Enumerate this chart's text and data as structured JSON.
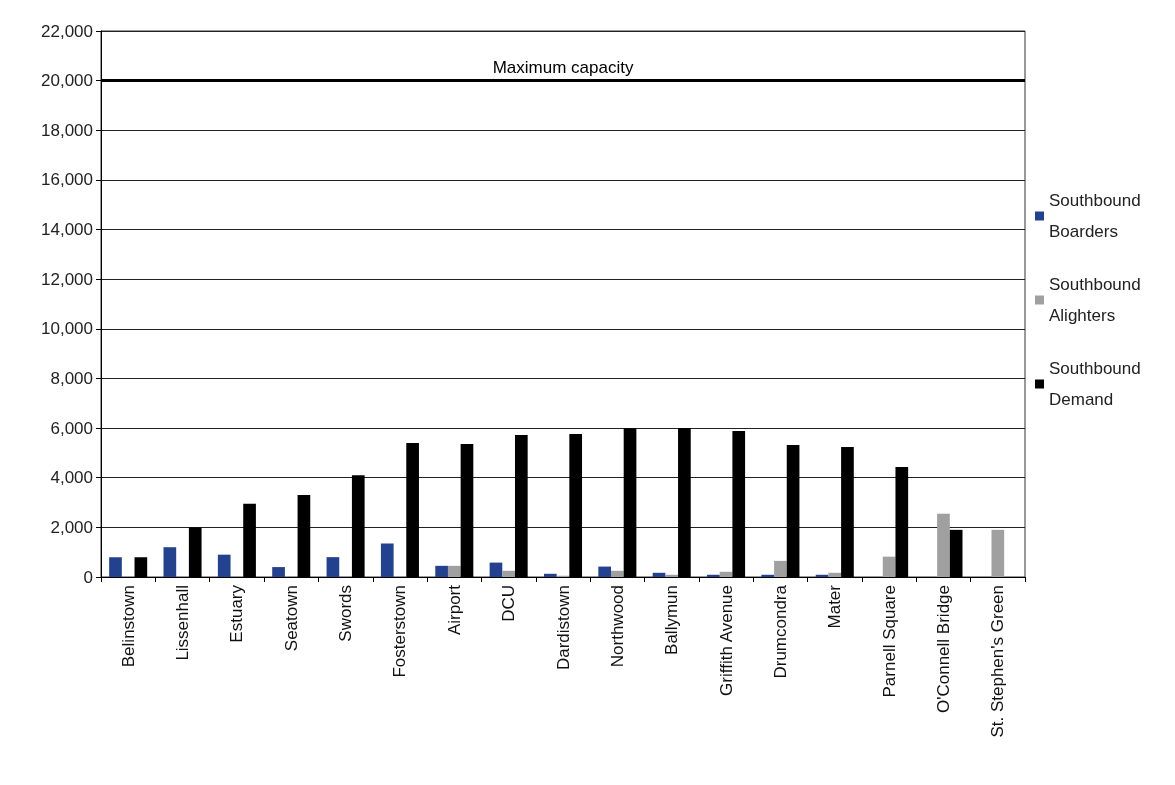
{
  "chart_data": {
    "type": "bar",
    "categories": [
      "Belinstown",
      "Lissenhall",
      "Estuary",
      "Seatown",
      "Swords",
      "Fosterstown",
      "Airport",
      "DCU",
      "Dardistown",
      "Northwood",
      "Ballymun",
      "Griffith Avenue",
      "Drumcondra",
      "Mater",
      "Parnell Square",
      "O'Connell Bridge",
      "St. Stephen's Green"
    ],
    "series": [
      {
        "name": "Southbound Boarders",
        "color": "#22418f",
        "values": [
          800,
          1200,
          900,
          400,
          800,
          1350,
          450,
          580,
          130,
          420,
          170,
          90,
          90,
          90,
          0,
          0,
          0
        ]
      },
      {
        "name": "Southbound Alighters",
        "color": "#a0a0a0",
        "values": [
          0,
          0,
          0,
          0,
          0,
          0,
          450,
          250,
          50,
          250,
          90,
          210,
          650,
          170,
          820,
          2550,
          1900
        ]
      },
      {
        "name": "Southbound Demand",
        "color": "#000000",
        "values": [
          800,
          2000,
          2950,
          3300,
          4100,
          5400,
          5360,
          5720,
          5760,
          5990,
          6000,
          5880,
          5320,
          5240,
          4430,
          1900,
          0
        ]
      }
    ],
    "ylim": [
      0,
      22000
    ],
    "yticks": [
      0,
      {
        "value": 2000,
        "label": "2,000"
      },
      {
        "value": 4000,
        "label": "4,000"
      },
      {
        "value": 6000,
        "label": "6,000"
      },
      {
        "value": 8000,
        "label": "8,000"
      },
      {
        "value": 10000,
        "label": "10,000"
      },
      {
        "value": 12000,
        "label": "12,000"
      },
      {
        "value": 14000,
        "label": "14,000"
      },
      {
        "value": 16000,
        "label": "16,000"
      },
      {
        "value": 18000,
        "label": "18,000"
      },
      {
        "value": 20000,
        "label": "20,000"
      },
      {
        "value": 22000,
        "label": "22,000"
      }
    ],
    "ref_lines": [
      {
        "axis": "y",
        "value": 20000,
        "label": "Maximum capacity",
        "color": "#000000"
      }
    ],
    "grid": "y",
    "legend": "right"
  }
}
